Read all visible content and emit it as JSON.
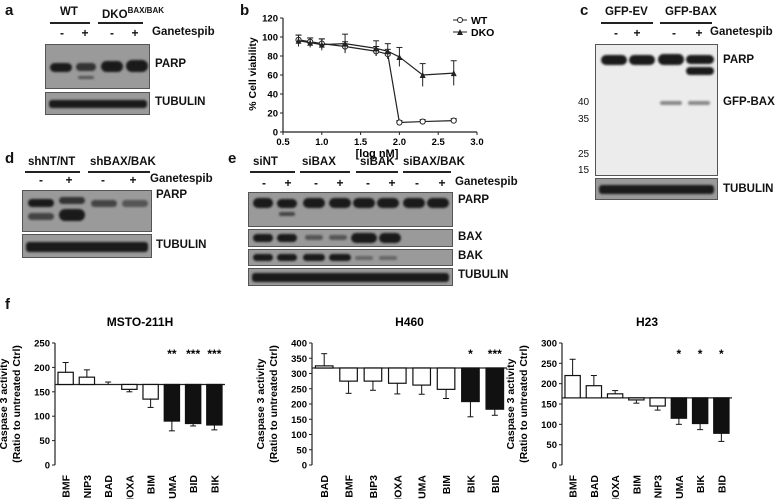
{
  "panels": {
    "a": {
      "letter": "a",
      "groups": [
        "WT",
        "DKO"
      ],
      "dko_superscript": "BAX/BAK",
      "treatment": "Ganetespib",
      "signs": [
        "-",
        "+",
        "-",
        "+"
      ],
      "rows": [
        "PARP",
        "TUBULIN"
      ]
    },
    "b": {
      "letter": "b",
      "legend": [
        "WT",
        "DKO"
      ]
    },
    "c": {
      "letter": "c",
      "groups": [
        "GFP-EV",
        "GFP-BAX"
      ],
      "treatment": "Ganetespib",
      "signs": [
        "-",
        "+",
        "-",
        "+"
      ],
      "rows": [
        "PARP",
        "GFP-BAX",
        "TUBULIN"
      ],
      "mw_markers": [
        "40",
        "35",
        "25",
        "15"
      ]
    },
    "d": {
      "letter": "d",
      "groups": [
        "shNT/NT",
        "shBAX/BAK"
      ],
      "treatment": "Ganetespib",
      "signs": [
        "-",
        "+",
        "-",
        "+"
      ],
      "rows": [
        "PARP",
        "TUBULIN"
      ]
    },
    "e": {
      "letter": "e",
      "groups": [
        "siNT",
        "siBAX",
        "siBAK",
        "siBAX/BAK"
      ],
      "treatment": "Ganetespib",
      "signs": [
        "-",
        "+",
        "-",
        "+",
        "-",
        "+",
        "-",
        "+"
      ],
      "rows": [
        "PARP",
        "BAX",
        "BAK",
        "TUBULIN"
      ]
    },
    "f": {
      "letter": "f"
    }
  },
  "chart_data": [
    {
      "type": "line",
      "panel": "b",
      "xlabel": "[log nM]",
      "ylabel": "% Cell viability",
      "xlim": [
        0.5,
        3.0
      ],
      "ylim": [
        0,
        120
      ],
      "xticks": [
        "0.5",
        "1.0",
        "1.5",
        "2.0",
        "2.5",
        "3.0"
      ],
      "yticks": [
        "0",
        "20",
        "40",
        "60",
        "80",
        "100",
        "120"
      ],
      "series": [
        {
          "name": "WT",
          "marker": "circle",
          "x": [
            0.7,
            0.85,
            1.0,
            1.3,
            1.7,
            1.85,
            2.0,
            2.3,
            2.7
          ],
          "y": [
            97,
            95,
            93,
            90,
            85,
            82,
            10,
            11,
            12
          ],
          "err": [
            5,
            4,
            5,
            5,
            5,
            5,
            2,
            2,
            2
          ]
        },
        {
          "name": "DKO",
          "marker": "triangle",
          "x": [
            0.7,
            0.85,
            1.0,
            1.3,
            1.7,
            1.85,
            2.0,
            2.3,
            2.7
          ],
          "y": [
            96,
            94,
            92,
            93,
            88,
            85,
            79,
            60,
            62
          ],
          "err": [
            6,
            5,
            6,
            10,
            8,
            8,
            10,
            12,
            13
          ]
        }
      ],
      "legend_position": "top-right",
      "grid": false
    },
    {
      "type": "bar",
      "panel": "f",
      "title": "MSTO-211H",
      "ylabel": "Caspase 3 activity (Ratio to untreated Ctrl)",
      "ylim": [
        0,
        250
      ],
      "yticks": [
        "0",
        "50",
        "100",
        "150",
        "200",
        "250"
      ],
      "baseline": 165,
      "categories": [
        "BMF",
        "BNIP3",
        "BAD",
        "NOXA",
        "BIM",
        "PUMA",
        "BID",
        "BIK"
      ],
      "values": [
        190,
        180,
        165,
        155,
        135,
        90,
        85,
        82
      ],
      "errors": [
        20,
        15,
        5,
        5,
        17,
        20,
        5,
        10
      ],
      "fill": [
        "white",
        "white",
        "white",
        "white",
        "white",
        "black",
        "black",
        "black"
      ],
      "significance": [
        "",
        "",
        "",
        "",
        "",
        "**",
        "***",
        "***"
      ]
    },
    {
      "type": "bar",
      "panel": "f",
      "title": "H460",
      "ylabel": "Caspase 3 activity (Ratio to untreated Ctrl)",
      "ylim": [
        0,
        400
      ],
      "yticks": [
        "0",
        "50",
        "100",
        "150",
        "200",
        "250",
        "300",
        "350",
        "400"
      ],
      "baseline": 318,
      "categories": [
        "BAD",
        "BMF",
        "BIP3",
        "NOXA",
        "PUMA",
        "BIM",
        "BIK",
        "BID"
      ],
      "values": [
        325,
        275,
        275,
        268,
        262,
        248,
        208,
        183
      ],
      "errors": [
        40,
        40,
        30,
        35,
        30,
        30,
        50,
        20
      ],
      "fill": [
        "white",
        "white",
        "white",
        "white",
        "white",
        "white",
        "black",
        "black"
      ],
      "significance": [
        "",
        "",
        "",
        "",
        "",
        "",
        "*",
        "***"
      ]
    },
    {
      "type": "bar",
      "panel": "f",
      "title": "H23",
      "ylabel": "Caspase 3 activity (Ratio to untreated Ctrl)",
      "ylim": [
        0,
        300
      ],
      "yticks": [
        "0",
        "50",
        "100",
        "150",
        "200",
        "250",
        "300"
      ],
      "baseline": 165,
      "categories": [
        "BMF",
        "BAD",
        "NOXA",
        "BIM",
        "BNIP3",
        "PUMA",
        "BIK",
        "BID"
      ],
      "values": [
        220,
        195,
        175,
        160,
        145,
        115,
        102,
        78
      ],
      "errors": [
        40,
        25,
        8,
        8,
        10,
        15,
        15,
        20
      ],
      "fill": [
        "white",
        "white",
        "white",
        "white",
        "white",
        "black",
        "black",
        "black"
      ],
      "significance": [
        "",
        "",
        "",
        "",
        "",
        "*",
        "*",
        "*"
      ]
    }
  ]
}
